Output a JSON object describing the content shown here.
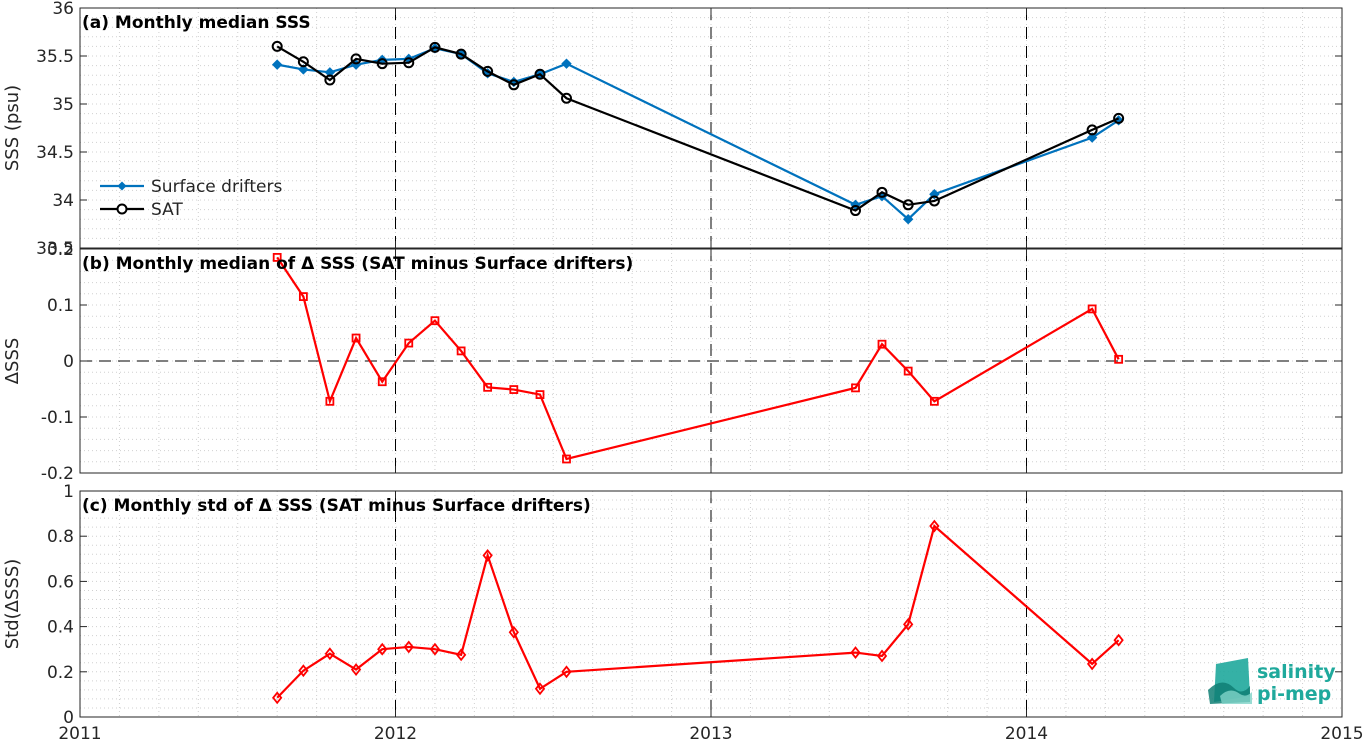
{
  "chart_data": [
    {
      "type": "line",
      "title": "(a) Monthly median SSS",
      "ylabel": "SSS (psu)",
      "xlim": [
        2011,
        2015
      ],
      "ylim": [
        33.5,
        36
      ],
      "xticks": [
        "2011",
        "2012",
        "2013",
        "2014",
        "2015"
      ],
      "yticks": [
        "33.5",
        "34",
        "34.5",
        "35",
        "35.5",
        "36"
      ],
      "grid": "dotted",
      "legend_position": "lower-left",
      "series": [
        {
          "name": "Surface drifters",
          "color": "#0072bd",
          "marker": "diamond-filled",
          "x": [
            2011.625,
            2011.708,
            2011.792,
            2011.875,
            2011.958,
            2012.042,
            2012.125,
            2012.208,
            2012.292,
            2012.375,
            2012.458,
            2012.542,
            2013.458,
            2013.542,
            2013.625,
            2013.708,
            2014.208,
            2014.292
          ],
          "y": [
            35.41,
            35.36,
            35.33,
            35.41,
            35.46,
            35.47,
            35.58,
            35.52,
            35.32,
            35.23,
            35.31,
            35.42,
            33.95,
            34.04,
            33.8,
            34.06,
            34.65,
            34.83
          ]
        },
        {
          "name": "SAT",
          "color": "#000000",
          "marker": "circle-open",
          "x": [
            2011.625,
            2011.708,
            2011.792,
            2011.875,
            2011.958,
            2012.042,
            2012.125,
            2012.208,
            2012.292,
            2012.375,
            2012.458,
            2012.542,
            2013.458,
            2013.542,
            2013.625,
            2013.708,
            2014.208,
            2014.292
          ],
          "y": [
            35.6,
            35.44,
            35.25,
            35.47,
            35.42,
            35.43,
            35.59,
            35.52,
            35.34,
            35.2,
            35.31,
            35.06,
            33.89,
            34.08,
            33.95,
            33.99,
            34.73,
            34.85
          ]
        }
      ]
    },
    {
      "type": "line",
      "title": "(b) Monthly median of Δ SSS (SAT minus Surface drifters)",
      "ylabel": "ΔSSS",
      "xlim": [
        2011,
        2015
      ],
      "ylim": [
        -0.2,
        0.2
      ],
      "xticks": [
        "2011",
        "2012",
        "2013",
        "2014",
        "2015"
      ],
      "yticks": [
        "-0.2",
        "-0.1",
        "0",
        "0.1",
        "0.2"
      ],
      "grid": "dotted",
      "series": [
        {
          "color": "#ff0000",
          "marker": "square-open",
          "x": [
            2011.625,
            2011.708,
            2011.792,
            2011.875,
            2011.958,
            2012.042,
            2012.125,
            2012.208,
            2012.292,
            2012.375,
            2012.458,
            2012.542,
            2013.458,
            2013.542,
            2013.625,
            2013.708,
            2014.208,
            2014.292
          ],
          "y": [
            0.185,
            0.115,
            -0.072,
            0.041,
            -0.037,
            0.032,
            0.072,
            0.018,
            -0.047,
            -0.051,
            -0.06,
            -0.175,
            -0.048,
            0.03,
            -0.018,
            -0.072,
            0.093,
            0.003
          ]
        }
      ]
    },
    {
      "type": "line",
      "title": "(c) Monthly std of Δ SSS (SAT minus Surface drifters)",
      "ylabel": "Std(ΔSSS)",
      "xlim": [
        2011,
        2015
      ],
      "ylim": [
        0,
        1
      ],
      "xticks": [
        "2011",
        "2012",
        "2013",
        "2014",
        "2015"
      ],
      "yticks": [
        "0",
        "0.2",
        "0.4",
        "0.6",
        "0.8",
        "1"
      ],
      "grid": "dotted",
      "series": [
        {
          "color": "#ff0000",
          "marker": "diamond-open",
          "x": [
            2011.625,
            2011.708,
            2011.792,
            2011.875,
            2011.958,
            2012.042,
            2012.125,
            2012.208,
            2012.292,
            2012.375,
            2012.458,
            2012.542,
            2013.458,
            2013.542,
            2013.625,
            2013.708,
            2014.208,
            2014.292
          ],
          "y": [
            0.085,
            0.205,
            0.28,
            0.21,
            0.3,
            0.31,
            0.3,
            0.275,
            0.715,
            0.375,
            0.125,
            0.2,
            0.285,
            0.27,
            0.41,
            0.845,
            0.235,
            0.34
          ]
        }
      ]
    }
  ],
  "logo": {
    "line1": "salinity",
    "line2": "pi-mep",
    "color": "#1fa99c"
  }
}
